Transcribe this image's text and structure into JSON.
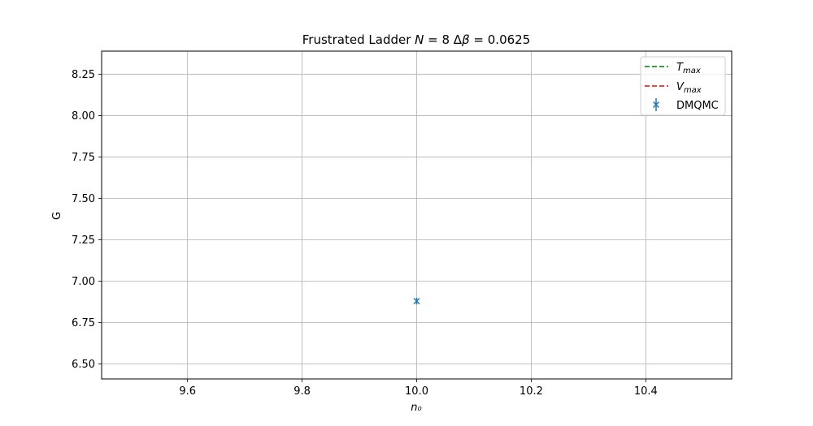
{
  "chart_data": {
    "type": "scatter",
    "title": "Frustrated Ladder N = 8 Δβ = 0.0625",
    "xlabel": "n₀",
    "ylabel": "G",
    "xlim": [
      9.45,
      10.55
    ],
    "ylim": [
      6.41,
      8.39
    ],
    "xticks": [
      9.6,
      9.8,
      10.0,
      10.2,
      10.4
    ],
    "xtick_labels": [
      "9.6",
      "9.8",
      "10.0",
      "10.2",
      "10.4"
    ],
    "yticks": [
      6.5,
      6.75,
      7.0,
      7.25,
      7.5,
      7.75,
      8.0,
      8.25
    ],
    "ytick_labels": [
      "6.50",
      "6.75",
      "7.00",
      "7.25",
      "7.50",
      "7.75",
      "8.00",
      "8.25"
    ],
    "grid": true,
    "legend_position": "top-right",
    "legend": [
      {
        "label": "T_max",
        "style": "dashed-line",
        "color": "#008000"
      },
      {
        "label": "V_max",
        "style": "dashed-line",
        "color": "#ff0000"
      },
      {
        "label": "DMQMC",
        "style": "x-marker-errorbar",
        "color": "#1f77b4"
      }
    ],
    "series": [
      {
        "name": "DMQMC",
        "color": "#1f77b4",
        "marker": "x",
        "points": [
          {
            "x": 10.0,
            "y": 6.88,
            "yerr": 0.02
          }
        ]
      },
      {
        "name": "T_max",
        "color": "#008000",
        "style": "dashed",
        "points": []
      },
      {
        "name": "V_max",
        "color": "#ff0000",
        "style": "dashed",
        "points": []
      }
    ]
  }
}
